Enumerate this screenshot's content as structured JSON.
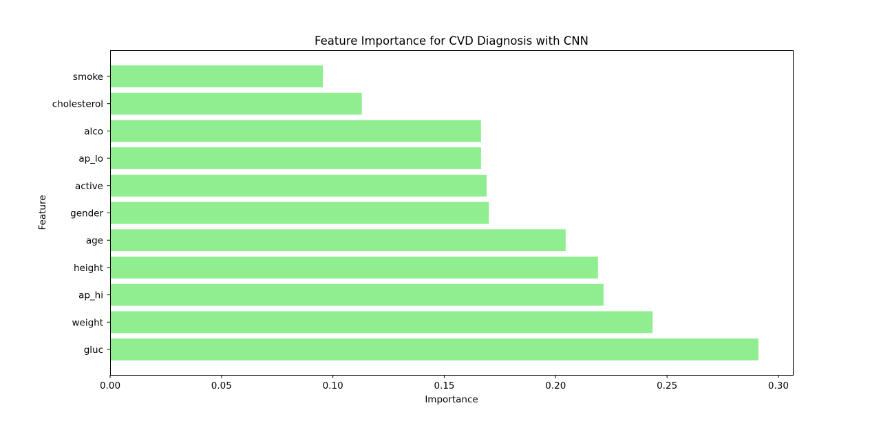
{
  "chart_data": {
    "type": "bar",
    "orientation": "horizontal",
    "title": "Feature Importance for CVD Diagnosis with CNN",
    "xlabel": "Importance",
    "ylabel": "Feature",
    "categories": [
      "gluc",
      "weight",
      "ap_hi",
      "height",
      "age",
      "gender",
      "active",
      "ap_lo",
      "alco",
      "cholesterol",
      "smoke"
    ],
    "values": [
      0.291,
      0.2435,
      0.2215,
      0.219,
      0.2045,
      0.17,
      0.169,
      0.1665,
      0.1665,
      0.113,
      0.0955
    ],
    "xlim": [
      0.0,
      0.3065
    ],
    "xticks": [
      0.0,
      0.05,
      0.1,
      0.15,
      0.2,
      0.25,
      0.3
    ],
    "xtick_labels": [
      "0.00",
      "0.05",
      "0.10",
      "0.15",
      "0.20",
      "0.25",
      "0.30"
    ],
    "bar_color": "#90ee90",
    "grid": false,
    "legend": "none"
  }
}
